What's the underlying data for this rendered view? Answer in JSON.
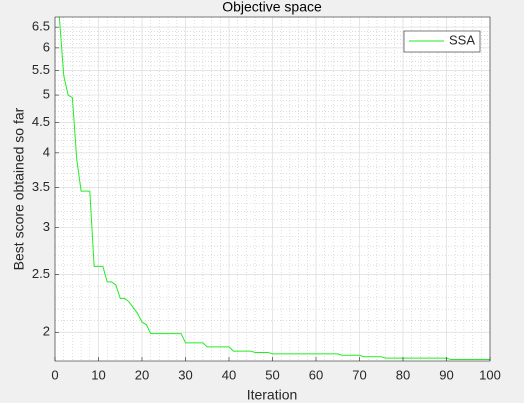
{
  "chart_data": {
    "type": "line",
    "title": "Objective space",
    "x_label": "Iteration",
    "y_label": "Best score obtained so far",
    "yscale": "log",
    "grid": true,
    "minor_grid": true,
    "legend": "top-right",
    "x": [
      1,
      2,
      3,
      4,
      5,
      6,
      7,
      8,
      9,
      10,
      11,
      12,
      13,
      14,
      15,
      16,
      17,
      18,
      19,
      20,
      21,
      22,
      23,
      24,
      25,
      26,
      27,
      28,
      29,
      30,
      31,
      32,
      33,
      34,
      35,
      36,
      37,
      38,
      39,
      40,
      41,
      42,
      43,
      44,
      45,
      46,
      47,
      48,
      49,
      50,
      51,
      52,
      53,
      54,
      55,
      56,
      57,
      58,
      59,
      60,
      61,
      62,
      63,
      64,
      65,
      66,
      67,
      68,
      69,
      70,
      71,
      72,
      73,
      74,
      75,
      76,
      77,
      78,
      79,
      80,
      81,
      82,
      83,
      84,
      85,
      86,
      87,
      88,
      89,
      90,
      91,
      92,
      93,
      94,
      95,
      96,
      97,
      98,
      99,
      100
    ],
    "series": [
      {
        "name": "SSA",
        "color": "#22ee22",
        "values": [
          6.76,
          5.4,
          5.0,
          4.95,
          3.9,
          3.45,
          3.45,
          3.45,
          2.58,
          2.58,
          2.58,
          2.43,
          2.43,
          2.4,
          2.28,
          2.28,
          2.25,
          2.2,
          2.15,
          2.08,
          2.06,
          1.99,
          1.99,
          1.99,
          1.99,
          1.99,
          1.99,
          1.99,
          1.99,
          1.92,
          1.92,
          1.92,
          1.92,
          1.92,
          1.89,
          1.89,
          1.89,
          1.89,
          1.89,
          1.89,
          1.86,
          1.86,
          1.86,
          1.86,
          1.86,
          1.85,
          1.85,
          1.85,
          1.85,
          1.84,
          1.84,
          1.84,
          1.84,
          1.84,
          1.84,
          1.84,
          1.84,
          1.84,
          1.84,
          1.84,
          1.84,
          1.84,
          1.84,
          1.84,
          1.84,
          1.83,
          1.83,
          1.83,
          1.83,
          1.83,
          1.82,
          1.82,
          1.82,
          1.82,
          1.82,
          1.81,
          1.81,
          1.81,
          1.81,
          1.81,
          1.81,
          1.81,
          1.81,
          1.81,
          1.81,
          1.81,
          1.81,
          1.81,
          1.81,
          1.81,
          1.8,
          1.8,
          1.8,
          1.8,
          1.8,
          1.8,
          1.8,
          1.8,
          1.8,
          1.8
        ]
      }
    ],
    "xlim": [
      0,
      100
    ],
    "xticks": [
      0,
      10,
      20,
      30,
      40,
      50,
      60,
      70,
      80,
      90,
      100
    ],
    "ylim": [
      1.79,
      6.76
    ],
    "yticks": [
      2,
      2.5,
      3,
      3.5,
      4,
      4.5,
      5,
      5.5,
      6,
      6.5
    ]
  }
}
